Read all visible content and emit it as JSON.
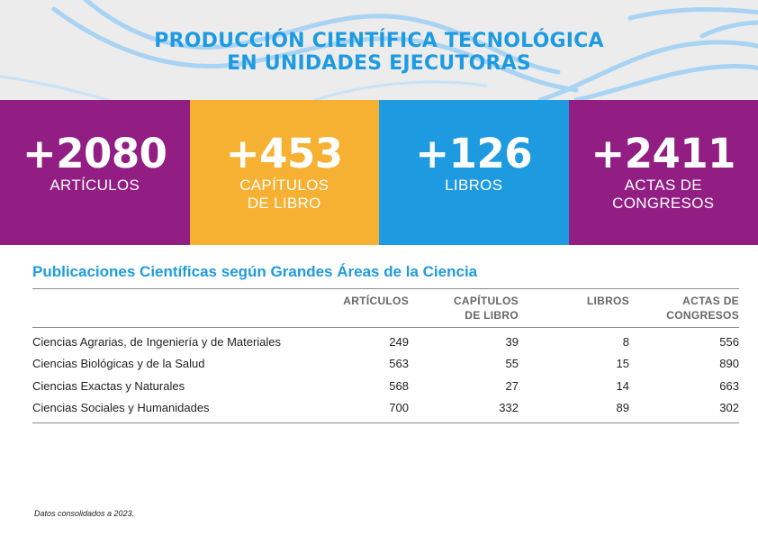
{
  "header": {
    "title_line1": "PRODUCCIÓN CIENTÍFICA TECNOLÓGICA",
    "title_line2": "EN UNIDADES EJECUTORAS"
  },
  "stats": [
    {
      "value": "+2080",
      "label_line1": "ARTÍCULOS",
      "label_line2": "",
      "color": "#921e84"
    },
    {
      "value": "+453",
      "label_line1": "CAPÍTULOS",
      "label_line2": "DE LIBRO",
      "color": "#f6b032"
    },
    {
      "value": "+126",
      "label_line1": "LIBROS",
      "label_line2": "",
      "color": "#1e9be0"
    },
    {
      "value": "+2411",
      "label_line1": "ACTAS DE",
      "label_line2": "CONGRESOS",
      "color": "#921e84"
    }
  ],
  "table": {
    "title": "Publicaciones Científicas según Grandes Áreas de la Ciencia",
    "columns": [
      {
        "line1": "ARTÍCULOS",
        "line2": ""
      },
      {
        "line1": "CAPÍTULOS",
        "line2": "DE LIBRO"
      },
      {
        "line1": "LIBROS",
        "line2": ""
      },
      {
        "line1": "ACTAS DE",
        "line2": "CONGRESOS"
      }
    ],
    "rows": [
      {
        "area": "Ciencias Agrarias, de Ingeniería y de Materiales",
        "values": [
          "249",
          "39",
          "8",
          "556"
        ]
      },
      {
        "area": "Ciencias Biológicas y de la Salud",
        "values": [
          "563",
          "55",
          "15",
          "890"
        ]
      },
      {
        "area": "Ciencias Exactas y Naturales",
        "values": [
          "568",
          "27",
          "14",
          "663"
        ]
      },
      {
        "area": "Ciencias Sociales y Humanidades",
        "values": [
          "700",
          "332",
          "89",
          "302"
        ]
      }
    ]
  },
  "footnote": "Datos consolidados a 2023."
}
